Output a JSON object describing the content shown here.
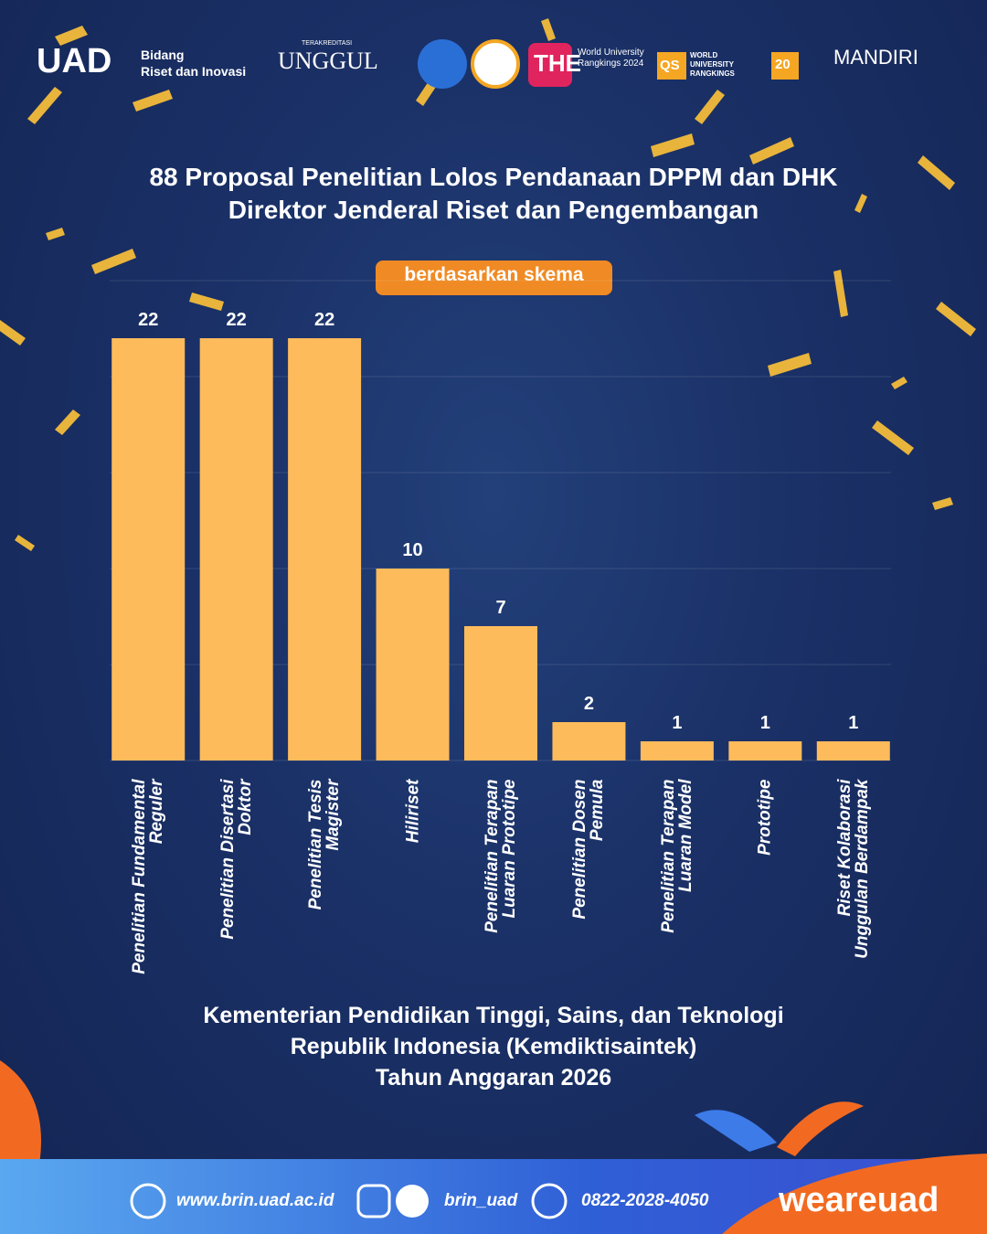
{
  "header": {
    "uad": "UAD",
    "bidang": "Bidang",
    "riset": "Riset dan Inovasi",
    "terakreditasi": "TERAKREDITASI",
    "unggul": "UNGGUL",
    "the": "THE",
    "the_text": "World University Rangkings 2024",
    "qs": "QS",
    "qs_text": "WORLD UNIVERSITY RANGKINGS",
    "qs_years": "20",
    "mandiri": "MANDIRI"
  },
  "chart_data": {
    "type": "bar",
    "title": [
      "88 Proposal Penelitian Lolos Pendanaan DPPM dan DHK",
      "Direktor Jenderal Riset dan Pengembangan"
    ],
    "subtitle": "berdasarkan skema",
    "categories": [
      "Penelitian Fundamental Reguler",
      "Penelitian Disertasi Doktor",
      "Penelitian Tesis Magister",
      "Hiliriset",
      "Penelitian Terapan Luaran Prototipe",
      "Penelitian Dosen Pemula",
      "Penelitian Terapan Luaran Model",
      "Prototipe",
      "Riset Kolaborasi Unggulan Berdampak"
    ],
    "values": [
      22,
      22,
      22,
      10,
      7,
      2,
      1,
      1,
      1
    ],
    "color": "#fdbb5c",
    "ylim": [
      0,
      25
    ],
    "yticks": [
      0,
      5,
      10,
      15,
      20,
      25
    ],
    "grid": true
  },
  "note": [
    "Kementerian Pendidikan Tinggi, Sains, dan Teknologi",
    "Republik Indonesia (Kemdiktisaintek)",
    "Tahun Anggaran 2026"
  ],
  "footer": {
    "website": "www.brin.uad.ac.id",
    "social": "brin_uad",
    "phone": "0822-2028-4050",
    "brand": "weareuad"
  }
}
